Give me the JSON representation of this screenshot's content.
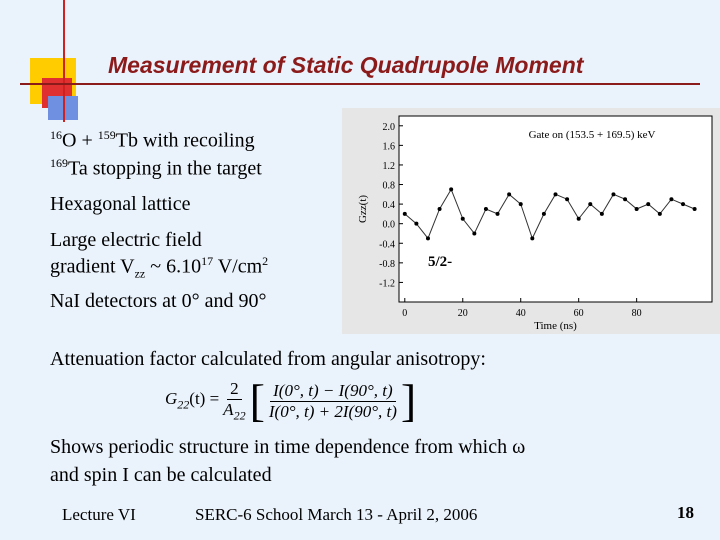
{
  "title": "Measurement of Static Quadrupole Moment",
  "text": {
    "intro": [
      "16",
      "O + ",
      "159",
      "Tb with recoiling"
    ],
    "intro2": [
      "169",
      "Ta stopping in the target"
    ],
    "lattice": "Hexagonal lattice",
    "field1": "Large electric field",
    "field2": [
      "gradient V",
      "zz",
      " ~ 6.10",
      "17",
      " V/cm",
      "2"
    ],
    "detectors": "NaI detectors at 0° and 90°",
    "attenuation": "Attenuation factor calculated from angular anisotropy:",
    "periodic": "Shows periodic structure in time dependence from which ω",
    "periodic2": "and spin I can be calculated"
  },
  "formula": {
    "lhs": "G",
    "lhs_sub": "22",
    "lhs_rest": "(t) =",
    "coef_num": "2",
    "coef_den": "A",
    "coef_den_sub": "22",
    "num": "I(0°, t) − I(90°, t)",
    "den": "I(0°, t) + 2I(90°, t)"
  },
  "figure": {
    "type": "line",
    "title": "Gate on (153.5 + 169.5) keV",
    "xlabel": "Time (ns)",
    "ylabel": "Gzz(t)",
    "annotation": "5/2-",
    "x": [
      0,
      4,
      8,
      12,
      16,
      20,
      24,
      28,
      32,
      36,
      40,
      44,
      48,
      52,
      56,
      60,
      64,
      68,
      72,
      76,
      80,
      84,
      88,
      92,
      96,
      100
    ],
    "values": [
      0.2,
      0.0,
      -0.3,
      0.3,
      0.7,
      0.1,
      -0.2,
      0.3,
      0.2,
      0.6,
      0.4,
      -0.3,
      0.2,
      0.6,
      0.5,
      0.1,
      0.4,
      0.2,
      0.6,
      0.5,
      0.3,
      0.4,
      0.2,
      0.5,
      0.4,
      0.3
    ],
    "xlim": [
      -2,
      106
    ],
    "ylim": [
      -1.6,
      2.2
    ],
    "xticks": [
      0,
      20,
      40,
      60,
      80
    ],
    "yticks": [
      2.0,
      1.6,
      1.2,
      0.8,
      0.4,
      0.0,
      -0.4,
      -0.8,
      -1.2
    ],
    "ytick_labels": [
      "2.0",
      "1.6",
      "1.2",
      "0.8",
      "0.4",
      "0.0",
      "-0.4",
      "-0.8",
      "-1.2"
    ]
  },
  "footer": {
    "left": "Lecture VI",
    "center": "SERC-6 School March 13 - April 2, 2006",
    "page": "18"
  }
}
